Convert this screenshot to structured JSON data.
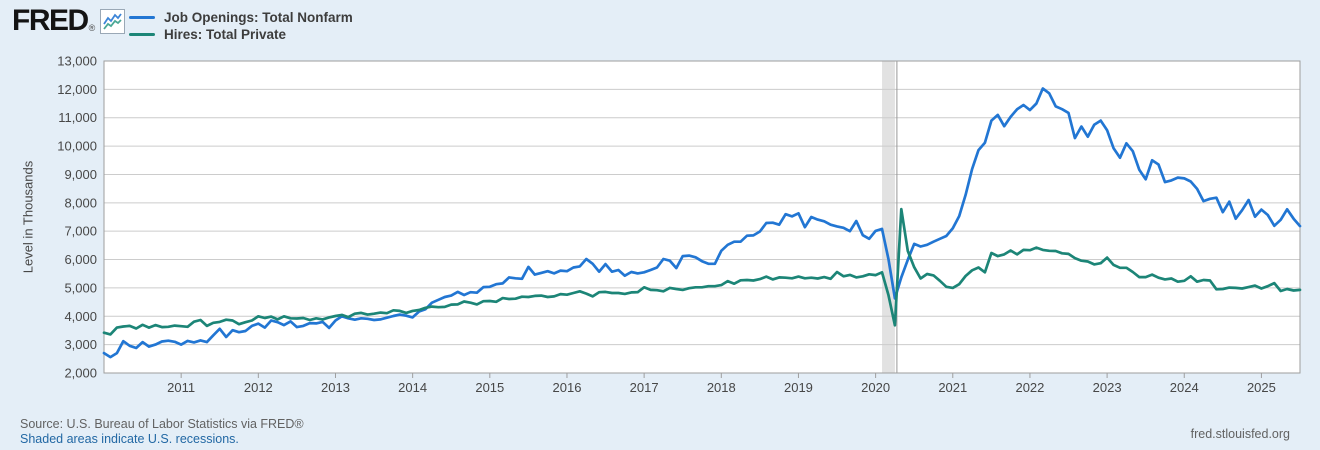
{
  "header": {
    "logo_text": "FRED",
    "logo_registered": "®",
    "legend": [
      {
        "label": "Job Openings: Total Nonfarm",
        "color": "#2276d3"
      },
      {
        "label": "Hires: Total Private",
        "color": "#1c8577"
      }
    ]
  },
  "footer": {
    "source_line": "Source: U.S. Bureau of Labor Statistics via FRED®",
    "recession_note": "Shaded areas indicate U.S. recessions.",
    "site_link": "fred.stlouisfed.org"
  },
  "chart_data": {
    "type": "line",
    "title": "",
    "xlabel": "",
    "ylabel": "Level in Thousands",
    "ylim": [
      2000,
      13000
    ],
    "ytick_interval": 1000,
    "xtick_labels": [
      "2011",
      "2012",
      "2013",
      "2014",
      "2015",
      "2016",
      "2017",
      "2018",
      "2019",
      "2020",
      "2021",
      "2022",
      "2023",
      "2024",
      "2025"
    ],
    "x_start": "2010-01",
    "x_end": "2025-07",
    "frequency": "monthly",
    "grid": "horizontal",
    "legend_position": "top-left",
    "recession_band": {
      "from": "2020-02",
      "to": "2020-04"
    },
    "colors": {
      "grid": "#cccccc",
      "plot_border": "#9e9e9e",
      "plot_bg": "#ffffff",
      "band": "#e2e2e2",
      "band_line": "#979797",
      "tick_text": "#474747"
    },
    "series": [
      {
        "name": "Job Openings: Total Nonfarm",
        "color": "#2276d3",
        "values": [
          2700,
          2560,
          2700,
          3120,
          2960,
          2880,
          3090,
          2930,
          3000,
          3110,
          3140,
          3100,
          3000,
          3130,
          3080,
          3150,
          3090,
          3330,
          3560,
          3270,
          3510,
          3440,
          3480,
          3660,
          3740,
          3600,
          3850,
          3790,
          3690,
          3820,
          3620,
          3660,
          3760,
          3750,
          3800,
          3590,
          3850,
          4000,
          3930,
          3880,
          3930,
          3910,
          3870,
          3890,
          3950,
          4010,
          4060,
          4020,
          3960,
          4170,
          4250,
          4480,
          4580,
          4680,
          4730,
          4860,
          4750,
          4850,
          4830,
          5030,
          5040,
          5130,
          5160,
          5370,
          5340,
          5320,
          5740,
          5470,
          5530,
          5590,
          5510,
          5610,
          5590,
          5720,
          5760,
          6020,
          5850,
          5570,
          5840,
          5570,
          5630,
          5430,
          5560,
          5510,
          5550,
          5630,
          5720,
          6020,
          5960,
          5700,
          6120,
          6140,
          6080,
          5940,
          5850,
          5850,
          6310,
          6520,
          6630,
          6630,
          6840,
          6850,
          6990,
          7290,
          7300,
          7230,
          7600,
          7520,
          7630,
          7140,
          7500,
          7410,
          7350,
          7230,
          7170,
          7120,
          7000,
          7360,
          6860,
          6730,
          7010,
          7080,
          6010,
          4630,
          5370,
          5990,
          6550,
          6460,
          6520,
          6630,
          6730,
          6830,
          7100,
          7530,
          8280,
          9190,
          9860,
          10120,
          10900,
          11100,
          10700,
          11030,
          11300,
          11450,
          11270,
          11500,
          12030,
          11860,
          11400,
          11300,
          11170,
          10280,
          10690,
          10330,
          10750,
          10900,
          10560,
          9930,
          9590,
          10100,
          9820,
          9170,
          8830,
          9500,
          9350,
          8730,
          8790,
          8890,
          8860,
          8750,
          8490,
          8060,
          8140,
          8180,
          7670,
          8040,
          7440,
          7740,
          8100,
          7510,
          7760,
          7570,
          7190,
          7400,
          7770,
          7440,
          7180
        ]
      },
      {
        "name": "Hires: Total Private",
        "color": "#1c8577",
        "values": [
          3420,
          3360,
          3600,
          3640,
          3660,
          3570,
          3700,
          3600,
          3690,
          3620,
          3630,
          3670,
          3650,
          3630,
          3810,
          3870,
          3660,
          3770,
          3800,
          3880,
          3850,
          3720,
          3790,
          3850,
          4000,
          3940,
          3990,
          3890,
          4000,
          3930,
          3920,
          3940,
          3870,
          3930,
          3890,
          3960,
          4010,
          4050,
          3970,
          4090,
          4120,
          4060,
          4090,
          4130,
          4110,
          4210,
          4190,
          4120,
          4190,
          4220,
          4300,
          4340,
          4320,
          4330,
          4410,
          4420,
          4520,
          4480,
          4420,
          4530,
          4540,
          4510,
          4640,
          4610,
          4620,
          4690,
          4680,
          4720,
          4730,
          4680,
          4700,
          4780,
          4760,
          4820,
          4880,
          4800,
          4700,
          4850,
          4860,
          4820,
          4820,
          4790,
          4840,
          4850,
          5020,
          4930,
          4920,
          4880,
          5000,
          4960,
          4930,
          4990,
          5020,
          5020,
          5060,
          5060,
          5100,
          5240,
          5150,
          5270,
          5280,
          5260,
          5310,
          5400,
          5300,
          5370,
          5360,
          5340,
          5400,
          5340,
          5360,
          5330,
          5380,
          5320,
          5560,
          5410,
          5460,
          5370,
          5410,
          5480,
          5450,
          5550,
          4740,
          3680,
          7780,
          6300,
          5730,
          5330,
          5490,
          5440,
          5250,
          5040,
          5000,
          5130,
          5420,
          5620,
          5720,
          5550,
          6230,
          6120,
          6180,
          6320,
          6180,
          6340,
          6330,
          6420,
          6340,
          6310,
          6300,
          6220,
          6200,
          6050,
          5960,
          5930,
          5830,
          5870,
          6070,
          5810,
          5710,
          5710,
          5560,
          5380,
          5380,
          5470,
          5360,
          5300,
          5330,
          5220,
          5250,
          5410,
          5220,
          5280,
          5260,
          4950,
          4960,
          5010,
          5000,
          4980,
          5030,
          5080,
          4980,
          5060,
          5170,
          4890,
          4960,
          4910,
          4930
        ]
      }
    ]
  }
}
